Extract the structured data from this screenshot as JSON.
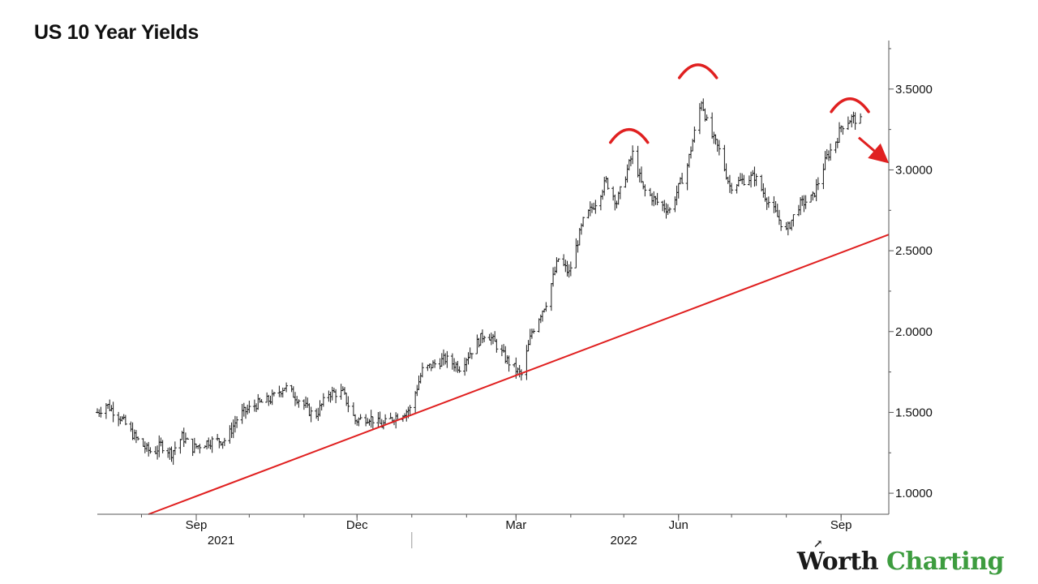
{
  "chart_data": {
    "type": "ohlc",
    "title": "US 10 Year Yields",
    "y_range": [
      0.87,
      3.8
    ],
    "y_ticks": [
      "1.0000",
      "1.5000",
      "2.0000",
      "2.5000",
      "3.0000",
      "3.5000"
    ],
    "y_tick_values": [
      1.0,
      1.5,
      2.0,
      2.5,
      3.0,
      3.5
    ],
    "x_range": [
      "2021-07-07",
      "2022-09-28"
    ],
    "x_ticks": [
      {
        "date": "2021-09-01",
        "label": "Sep"
      },
      {
        "date": "2021-12-01",
        "label": "Dec"
      },
      {
        "date": "2022-03-01",
        "label": "Mar"
      },
      {
        "date": "2022-06-01",
        "label": "Jun"
      },
      {
        "date": "2022-09-01",
        "label": "Sep"
      }
    ],
    "year_labels": [
      {
        "date": "2021-09-15",
        "label": "2021"
      },
      {
        "date": "2022-05-01",
        "label": "2022"
      }
    ],
    "year_separator": "2022-01-01",
    "series_anchors": [
      [
        "2021-07-07",
        1.5
      ],
      [
        "2021-07-12",
        1.55
      ],
      [
        "2021-07-20",
        1.47
      ],
      [
        "2021-07-28",
        1.35
      ],
      [
        "2021-08-04",
        1.27
      ],
      [
        "2021-08-08",
        1.25
      ],
      [
        "2021-08-12",
        1.3
      ],
      [
        "2021-08-18",
        1.25
      ],
      [
        "2021-08-24",
        1.35
      ],
      [
        "2021-08-30",
        1.28
      ],
      [
        "2021-09-08",
        1.32
      ],
      [
        "2021-09-18",
        1.33
      ],
      [
        "2021-09-25",
        1.48
      ],
      [
        "2021-10-05",
        1.55
      ],
      [
        "2021-10-13",
        1.58
      ],
      [
        "2021-10-21",
        1.66
      ],
      [
        "2021-10-30",
        1.57
      ],
      [
        "2021-11-07",
        1.47
      ],
      [
        "2021-11-15",
        1.62
      ],
      [
        "2021-11-23",
        1.62
      ],
      [
        "2021-11-30",
        1.45
      ],
      [
        "2021-12-08",
        1.47
      ],
      [
        "2021-12-15",
        1.42
      ],
      [
        "2021-12-22",
        1.47
      ],
      [
        "2021-12-31",
        1.52
      ],
      [
        "2022-01-07",
        1.76
      ],
      [
        "2022-01-14",
        1.8
      ],
      [
        "2022-01-20",
        1.83
      ],
      [
        "2022-01-28",
        1.78
      ],
      [
        "2022-02-07",
        1.93
      ],
      [
        "2022-02-12",
        2.0
      ],
      [
        "2022-02-17",
        1.93
      ],
      [
        "2022-02-24",
        1.82
      ],
      [
        "2022-03-04",
        1.73
      ],
      [
        "2022-03-10",
        2.0
      ],
      [
        "2022-03-18",
        2.18
      ],
      [
        "2022-03-25",
        2.45
      ],
      [
        "2022-03-31",
        2.36
      ],
      [
        "2022-04-08",
        2.68
      ],
      [
        "2022-04-15",
        2.8
      ],
      [
        "2022-04-21",
        2.93
      ],
      [
        "2022-04-27",
        2.8
      ],
      [
        "2022-05-06",
        3.1
      ],
      [
        "2022-05-12",
        2.88
      ],
      [
        "2022-05-20",
        2.8
      ],
      [
        "2022-05-27",
        2.75
      ],
      [
        "2022-06-06",
        3.03
      ],
      [
        "2022-06-14",
        3.43
      ],
      [
        "2022-06-18",
        3.25
      ],
      [
        "2022-06-24",
        3.12
      ],
      [
        "2022-06-30",
        2.9
      ],
      [
        "2022-07-06",
        2.93
      ],
      [
        "2022-07-14",
        2.96
      ],
      [
        "2022-07-22",
        2.8
      ],
      [
        "2022-08-01",
        2.62
      ],
      [
        "2022-08-08",
        2.78
      ],
      [
        "2022-08-16",
        2.83
      ],
      [
        "2022-08-24",
        3.08
      ],
      [
        "2022-08-30",
        3.2
      ],
      [
        "2022-09-01",
        3.27
      ],
      [
        "2022-09-07",
        3.32
      ],
      [
        "2022-09-12",
        3.3
      ]
    ],
    "trendline": {
      "points": [
        [
          "2021-08-05",
          0.87
        ],
        [
          "2022-09-28",
          2.6
        ]
      ],
      "color": "#e02020"
    },
    "annotations": [
      {
        "type": "arc",
        "date": "2022-05-04",
        "value": 3.22,
        "color": "#e02020"
      },
      {
        "type": "arc",
        "date": "2022-06-12",
        "value": 3.62,
        "color": "#e02020"
      },
      {
        "type": "arc",
        "date": "2022-09-06",
        "value": 3.41,
        "color": "#e02020"
      },
      {
        "type": "arrow",
        "from": [
          "2022-09-11",
          3.2
        ],
        "to": [
          "2022-09-26",
          3.06
        ],
        "color": "#e02020"
      }
    ],
    "colors": {
      "bars": "#1a1a1a",
      "axis": "#555555",
      "annotation": "#e02020"
    }
  },
  "brand": {
    "part1": "Worth",
    "part2": "Charting",
    "color1": "#1a1a1a",
    "color2": "#3d9c3f"
  }
}
